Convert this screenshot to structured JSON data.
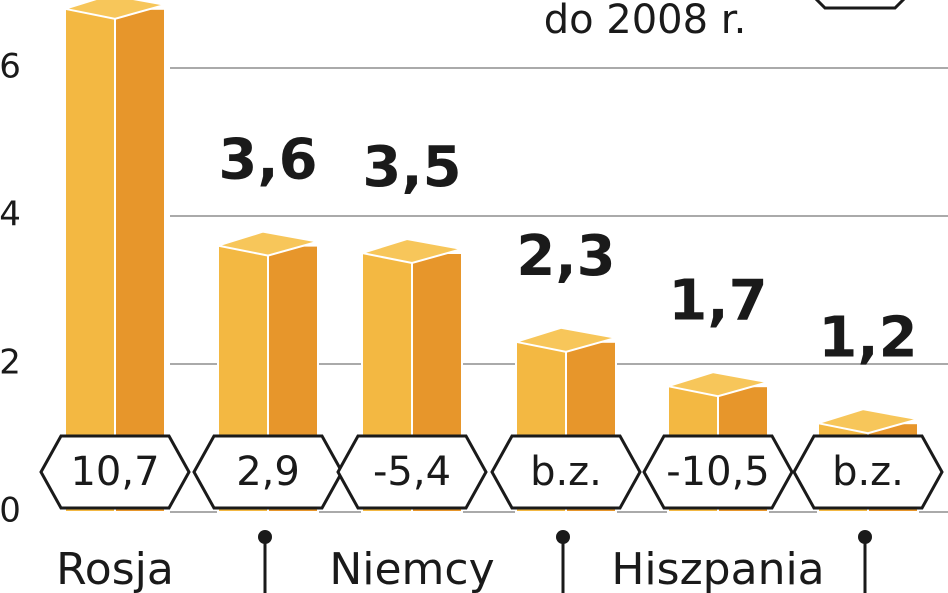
{
  "chart_data": {
    "type": "bar3d",
    "annotation": "do 2008 r.",
    "categories": [
      "Rosja",
      null,
      "Niemcy",
      null,
      "Hiszpania",
      null
    ],
    "values": [
      6.8,
      3.6,
      3.5,
      2.3,
      1.7,
      1.2
    ],
    "value_labels": [
      null,
      "3,6",
      "3,5",
      "2,3",
      "1,7",
      "1,2"
    ],
    "changes": [
      "10,7",
      "2,9",
      "-5,4",
      "b.z.",
      "-10,5",
      "b.z."
    ],
    "colors": {
      "left": "#f3b842",
      "right": "#e7962b",
      "top": "#f7c65a"
    },
    "ylim": [
      0,
      6.9
    ],
    "yticks": [
      0,
      2,
      4,
      6
    ],
    "grid": true
  }
}
